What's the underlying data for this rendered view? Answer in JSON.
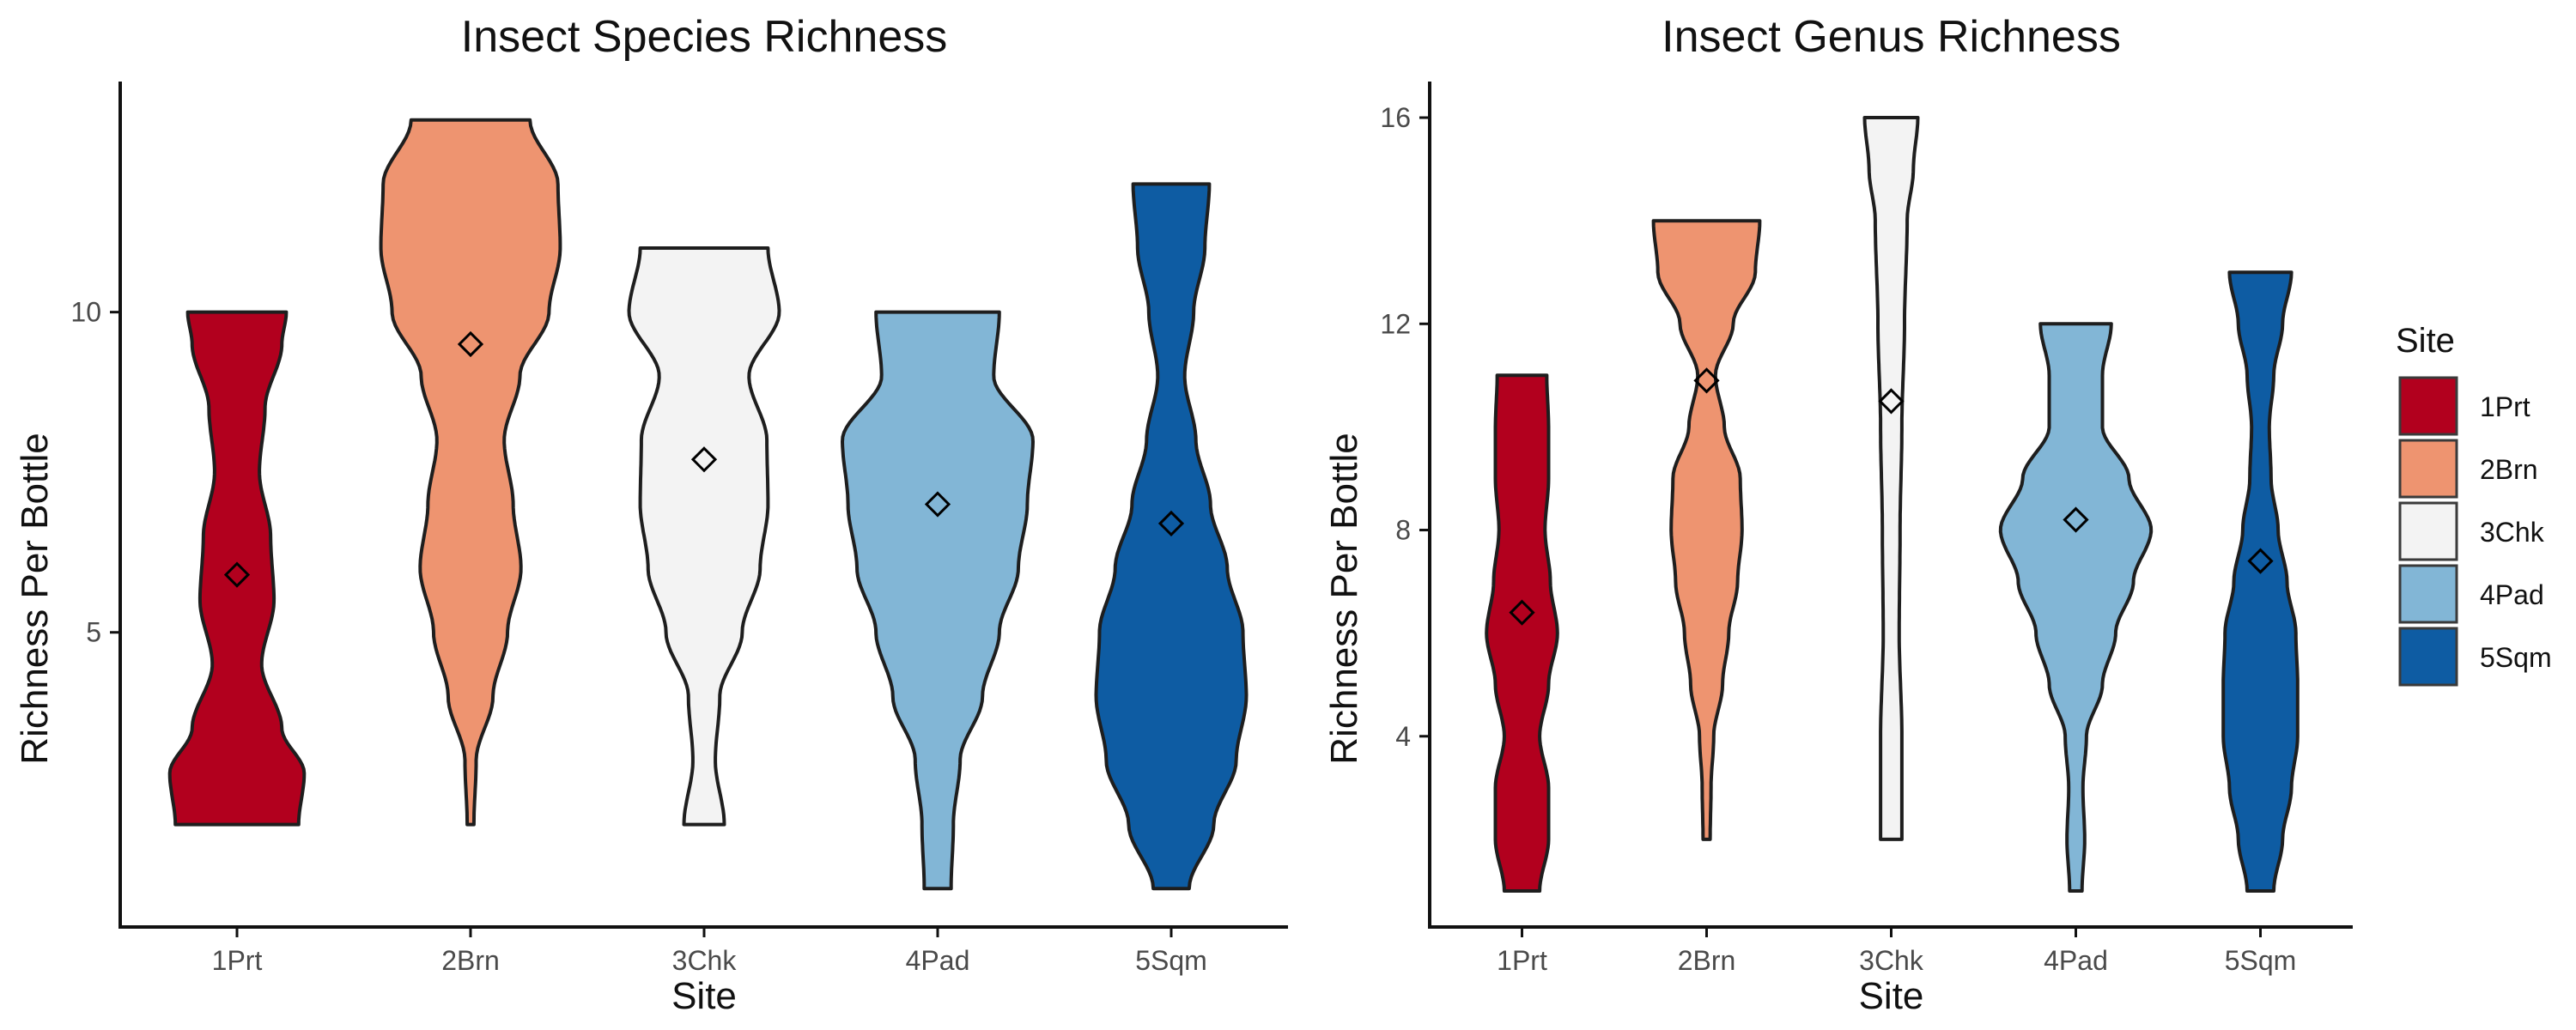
{
  "chart_data": [
    {
      "type": "violin",
      "title": "Insect Species Richness",
      "xlabel": "Site",
      "ylabel": "Richness Per Bottle",
      "categories": [
        "1Prt",
        "2Brn",
        "3Chk",
        "4Pad",
        "5Sqm"
      ],
      "ylim": [
        0.4,
        13.6
      ],
      "yticks": [
        5,
        10
      ],
      "means": [
        5.9,
        9.5,
        7.7,
        7.0,
        6.7
      ],
      "ranges": [
        [
          2,
          10
        ],
        [
          2,
          13
        ],
        [
          2,
          11
        ],
        [
          1,
          10
        ],
        [
          1,
          12
        ]
      ],
      "density_profiles": [
        [
          [
            2,
            0.55
          ],
          [
            2.8,
            0.6
          ],
          [
            3.5,
            0.4
          ],
          [
            4.5,
            0.22
          ],
          [
            5.5,
            0.33
          ],
          [
            6.5,
            0.3
          ],
          [
            7.5,
            0.2
          ],
          [
            8.5,
            0.25
          ],
          [
            9.5,
            0.4
          ],
          [
            10,
            0.44
          ]
        ],
        [
          [
            2,
            0.03
          ],
          [
            3,
            0.05
          ],
          [
            4,
            0.2
          ],
          [
            5,
            0.33
          ],
          [
            6,
            0.45
          ],
          [
            7,
            0.38
          ],
          [
            8,
            0.3
          ],
          [
            9,
            0.44
          ],
          [
            10,
            0.7
          ],
          [
            11,
            0.8
          ],
          [
            12,
            0.78
          ],
          [
            13,
            0.53
          ]
        ],
        [
          [
            2,
            0.18
          ],
          [
            3,
            0.1
          ],
          [
            4,
            0.14
          ],
          [
            5,
            0.34
          ],
          [
            6,
            0.5
          ],
          [
            7,
            0.57
          ],
          [
            8,
            0.56
          ],
          [
            9,
            0.4
          ],
          [
            10,
            0.67
          ],
          [
            11,
            0.57
          ]
        ],
        [
          [
            1,
            0.12
          ],
          [
            2,
            0.14
          ],
          [
            3,
            0.2
          ],
          [
            4,
            0.4
          ],
          [
            5,
            0.55
          ],
          [
            6,
            0.72
          ],
          [
            7,
            0.8
          ],
          [
            8,
            0.85
          ],
          [
            9,
            0.5
          ],
          [
            10,
            0.55
          ]
        ],
        [
          [
            1,
            0.16
          ],
          [
            2,
            0.38
          ],
          [
            3,
            0.58
          ],
          [
            4,
            0.67
          ],
          [
            5,
            0.64
          ],
          [
            6,
            0.5
          ],
          [
            7,
            0.35
          ],
          [
            8,
            0.22
          ],
          [
            9,
            0.12
          ],
          [
            10,
            0.2
          ],
          [
            11,
            0.3
          ],
          [
            12,
            0.34
          ]
        ]
      ]
    },
    {
      "type": "violin",
      "title": "Insect Genus Richness",
      "xlabel": "Site",
      "ylabel": "Richness Per Bottle",
      "categories": [
        "1Prt",
        "2Brn",
        "3Chk",
        "4Pad",
        "5Sqm"
      ],
      "ylim": [
        0.3,
        16.7
      ],
      "yticks": [
        4,
        8,
        12,
        16
      ],
      "means": [
        6.4,
        10.9,
        10.5,
        8.2,
        7.4
      ],
      "ranges": [
        [
          1,
          11
        ],
        [
          2,
          14
        ],
        [
          2,
          16
        ],
        [
          1,
          12
        ],
        [
          1,
          13
        ]
      ],
      "density_profiles": [
        [
          [
            1,
            0.2
          ],
          [
            2,
            0.3
          ],
          [
            3,
            0.3
          ],
          [
            4,
            0.2
          ],
          [
            5,
            0.3
          ],
          [
            6,
            0.4
          ],
          [
            7,
            0.32
          ],
          [
            8,
            0.26
          ],
          [
            9,
            0.3
          ],
          [
            10,
            0.3
          ],
          [
            11,
            0.28
          ]
        ],
        [
          [
            2,
            0.04
          ],
          [
            3,
            0.05
          ],
          [
            4,
            0.08
          ],
          [
            5,
            0.18
          ],
          [
            6,
            0.25
          ],
          [
            7,
            0.35
          ],
          [
            8,
            0.4
          ],
          [
            9,
            0.38
          ],
          [
            10,
            0.2
          ],
          [
            11,
            0.1
          ],
          [
            12,
            0.3
          ],
          [
            13,
            0.55
          ],
          [
            14,
            0.6
          ]
        ],
        [
          [
            2,
            0.12
          ],
          [
            4,
            0.12
          ],
          [
            6,
            0.09
          ],
          [
            8,
            0.1
          ],
          [
            10,
            0.12
          ],
          [
            12,
            0.15
          ],
          [
            14,
            0.18
          ],
          [
            15,
            0.25
          ],
          [
            16,
            0.3
          ]
        ],
        [
          [
            1,
            0.07
          ],
          [
            2,
            0.1
          ],
          [
            3,
            0.08
          ],
          [
            4,
            0.12
          ],
          [
            5,
            0.3
          ],
          [
            6,
            0.45
          ],
          [
            7,
            0.65
          ],
          [
            8,
            0.85
          ],
          [
            9,
            0.6
          ],
          [
            10,
            0.3
          ],
          [
            11,
            0.3
          ],
          [
            12,
            0.4
          ]
        ],
        [
          [
            1,
            0.15
          ],
          [
            2,
            0.25
          ],
          [
            3,
            0.35
          ],
          [
            4,
            0.42
          ],
          [
            5,
            0.42
          ],
          [
            6,
            0.4
          ],
          [
            7,
            0.3
          ],
          [
            8,
            0.2
          ],
          [
            9,
            0.12
          ],
          [
            10,
            0.1
          ],
          [
            11,
            0.15
          ],
          [
            12,
            0.25
          ],
          [
            13,
            0.35
          ]
        ]
      ]
    }
  ],
  "legend": {
    "title": "Site",
    "items": [
      {
        "label": "1Prt",
        "color": "#b2001e"
      },
      {
        "label": "2Brn",
        "color": "#ee9470"
      },
      {
        "label": "3Chk",
        "color": "#f3f3f3"
      },
      {
        "label": "4Pad",
        "color": "#82b6d6"
      },
      {
        "label": "5Sqm",
        "color": "#0e5ca3"
      }
    ]
  },
  "colors": {
    "outline": "#1e1e1e",
    "axis": "#111111"
  },
  "mean_marker_icon": "diamond-icon"
}
